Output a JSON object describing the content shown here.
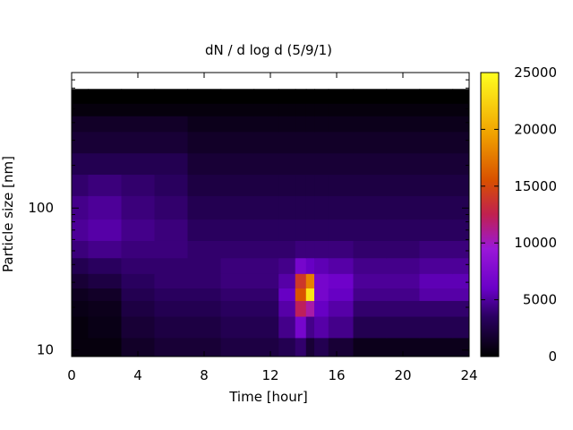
{
  "chart_data": {
    "type": "heatmap",
    "title": "dN / d log d (5/9/1)",
    "xlabel": "Time [hour]",
    "ylabel": "Particle size [nm]",
    "xlim": [
      0,
      24
    ],
    "ylim_nm": [
      9,
      900
    ],
    "y_scale": "log",
    "grid": false,
    "x_ticks": [
      {
        "value": 0,
        "label": "0"
      },
      {
        "value": 4,
        "label": "4"
      },
      {
        "value": 8,
        "label": "8"
      },
      {
        "value": 12,
        "label": "12"
      },
      {
        "value": 16,
        "label": "16"
      },
      {
        "value": 20,
        "label": "20"
      },
      {
        "value": 24,
        "label": "24"
      }
    ],
    "y_ticks": [
      {
        "value": 10,
        "label": "10"
      },
      {
        "value": 100,
        "label": "100"
      }
    ],
    "colorbar": {
      "range": [
        0,
        25000
      ],
      "ticks": [
        {
          "value": 0,
          "label": "0"
        },
        {
          "value": 5000,
          "label": "5000"
        },
        {
          "value": 10000,
          "label": "10000"
        },
        {
          "value": 15000,
          "label": "15000"
        },
        {
          "value": 20000,
          "label": "20000"
        },
        {
          "value": 25000,
          "label": "25000"
        }
      ],
      "colormap": [
        "#000000",
        "#2a0060",
        "#6a00c8",
        "#9a18d8",
        "#c02050",
        "#d85000",
        "#f0a000",
        "#ffff20"
      ]
    },
    "time_hours": [
      0,
      2,
      4,
      6,
      8,
      10,
      12,
      13,
      14,
      14.3,
      15,
      16,
      18,
      20,
      22,
      24
    ],
    "sizes_nm": [
      10,
      15,
      20,
      25,
      30,
      40,
      50,
      70,
      100,
      150,
      200,
      300,
      400,
      500,
      600
    ],
    "values": [
      [
        500,
        500,
        1500,
        2000,
        2000,
        2500,
        2500,
        3000,
        4000,
        2000,
        3000,
        2000,
        1000,
        1000,
        1000,
        1000
      ],
      [
        500,
        800,
        2000,
        2500,
        2500,
        3000,
        3000,
        5000,
        8000,
        5000,
        6000,
        5000,
        3000,
        3000,
        3000,
        3000
      ],
      [
        800,
        1000,
        2500,
        3000,
        3000,
        3500,
        3500,
        6000,
        14000,
        12000,
        7000,
        6000,
        4000,
        4000,
        4000,
        4000
      ],
      [
        1200,
        1500,
        3000,
        3500,
        3500,
        4000,
        4000,
        7000,
        18000,
        24000,
        8000,
        7000,
        5000,
        5000,
        6000,
        6000
      ],
      [
        2000,
        2500,
        3500,
        4000,
        4000,
        4500,
        4500,
        6000,
        16000,
        20000,
        8000,
        7500,
        5500,
        5500,
        6500,
        6500
      ],
      [
        3000,
        3500,
        4000,
        4000,
        4000,
        4500,
        4500,
        5000,
        8000,
        7000,
        6500,
        6000,
        5000,
        5000,
        5500,
        5500
      ],
      [
        4500,
        5000,
        4500,
        4500,
        4000,
        4000,
        4000,
        4000,
        4500,
        4500,
        4500,
        4500,
        4000,
        4000,
        4500,
        4500
      ],
      [
        5500,
        6000,
        5000,
        4500,
        3500,
        3500,
        3500,
        3500,
        3500,
        3500,
        3500,
        3500,
        3500,
        3500,
        3500,
        3500
      ],
      [
        5000,
        5500,
        4500,
        4000,
        3000,
        3000,
        3000,
        3000,
        3000,
        3000,
        3000,
        3000,
        3000,
        3000,
        3000,
        3000
      ],
      [
        4000,
        4500,
        4000,
        3500,
        2500,
        2500,
        2500,
        2500,
        2500,
        2500,
        2500,
        2500,
        2500,
        2500,
        2500,
        2500
      ],
      [
        3000,
        3000,
        3000,
        3000,
        2000,
        2000,
        2000,
        2000,
        2000,
        2000,
        2000,
        2000,
        2000,
        2000,
        2000,
        2000
      ],
      [
        2000,
        2000,
        2000,
        2000,
        1500,
        1500,
        1500,
        1500,
        1500,
        1500,
        1500,
        1500,
        1500,
        1500,
        1500,
        1500
      ],
      [
        1500,
        1500,
        1500,
        1500,
        1000,
        1000,
        1000,
        1000,
        1000,
        1000,
        1000,
        1000,
        1000,
        1000,
        1000,
        1000
      ],
      [
        500,
        500,
        500,
        500,
        500,
        500,
        500,
        500,
        500,
        500,
        500,
        500,
        500,
        500,
        500,
        500
      ],
      [
        0,
        0,
        0,
        0,
        0,
        0,
        0,
        0,
        0,
        0,
        0,
        0,
        0,
        0,
        0,
        0
      ]
    ]
  }
}
